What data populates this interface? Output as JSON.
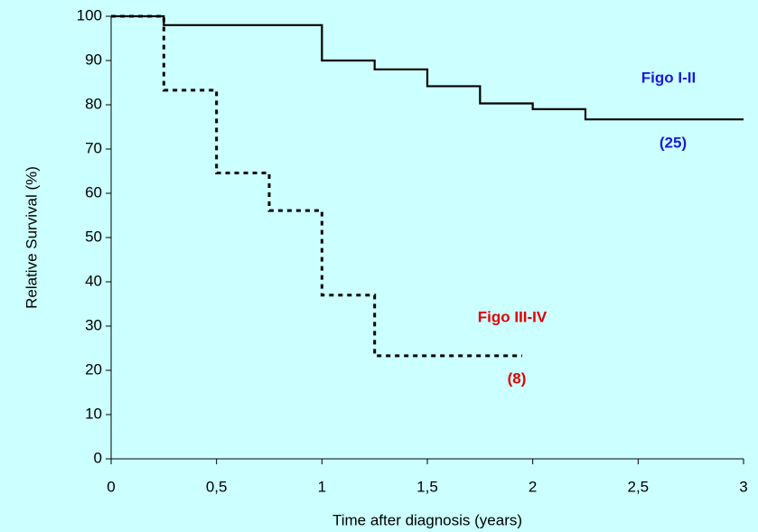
{
  "chart_data": {
    "type": "step",
    "x_label": "Time after diagnosis (years)",
    "y_label": "Relative Survival (%)",
    "xlim": [
      0,
      3
    ],
    "ylim": [
      0,
      100
    ],
    "xticks": [
      0,
      {
        "value": 0.5,
        "label": "0,5"
      },
      1,
      {
        "value": 1.5,
        "label": "1,5"
      },
      2,
      {
        "value": 2.5,
        "label": "2,5"
      },
      3
    ],
    "yticks": [
      0,
      10,
      20,
      30,
      40,
      50,
      60,
      70,
      80,
      90,
      100
    ],
    "grid": false,
    "series": [
      {
        "name": "Figo I-II",
        "count_label": "(25)",
        "color": "#000000",
        "label_color": "#1a1ad6",
        "dashed": false,
        "x": [
          0,
          0.25,
          1,
          1.25,
          1.5,
          1.75,
          2,
          2.25,
          3
        ],
        "values": [
          100,
          98,
          90,
          88,
          84.2,
          80.3,
          79,
          76.7,
          76.7
        ]
      },
      {
        "name": "Figo III-IV",
        "count_label": "(8)",
        "color": "#000000",
        "label_color": "#e00000",
        "dashed": true,
        "x": [
          0,
          0.25,
          0.5,
          0.75,
          1,
          1.25,
          1.95
        ],
        "values": [
          100,
          83.3,
          64.6,
          56.1,
          37,
          23.3,
          23.3
        ]
      }
    ]
  }
}
